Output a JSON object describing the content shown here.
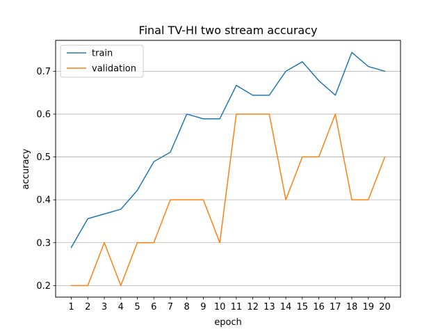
{
  "chart_data": {
    "type": "line",
    "title": "Final TV-HI two stream accuracy",
    "xlabel": "epoch",
    "ylabel": "accuracy",
    "x": [
      1,
      2,
      3,
      4,
      5,
      6,
      7,
      8,
      9,
      10,
      11,
      12,
      13,
      14,
      15,
      16,
      17,
      18,
      19,
      20
    ],
    "x_ticks": [
      "1",
      "2",
      "3",
      "4",
      "5",
      "6",
      "7",
      "8",
      "9",
      "10",
      "11",
      "12",
      "13",
      "14",
      "15",
      "16",
      "17",
      "18",
      "19",
      "20"
    ],
    "y_ticks": [
      "0.2",
      "0.3",
      "0.4",
      "0.5",
      "0.6",
      "0.7"
    ],
    "xlim": [
      0.05,
      20.95
    ],
    "ylim": [
      0.173,
      0.772
    ],
    "grid": "y-axis horizontal lines",
    "legend_position": "top-left",
    "series": [
      {
        "name": "train",
        "color": "#1f77b4",
        "values": [
          0.289,
          0.356,
          0.367,
          0.378,
          0.422,
          0.489,
          0.511,
          0.6,
          0.589,
          0.589,
          0.667,
          0.644,
          0.644,
          0.7,
          0.722,
          0.678,
          0.644,
          0.744,
          0.711,
          0.7
        ]
      },
      {
        "name": "validation",
        "color": "#ff7f0e",
        "values": [
          0.2,
          0.2,
          0.3,
          0.2,
          0.3,
          0.3,
          0.4,
          0.4,
          0.4,
          0.3,
          0.6,
          0.6,
          0.6,
          0.4,
          0.5,
          0.5,
          0.6,
          0.4,
          0.4,
          0.5
        ]
      }
    ]
  }
}
